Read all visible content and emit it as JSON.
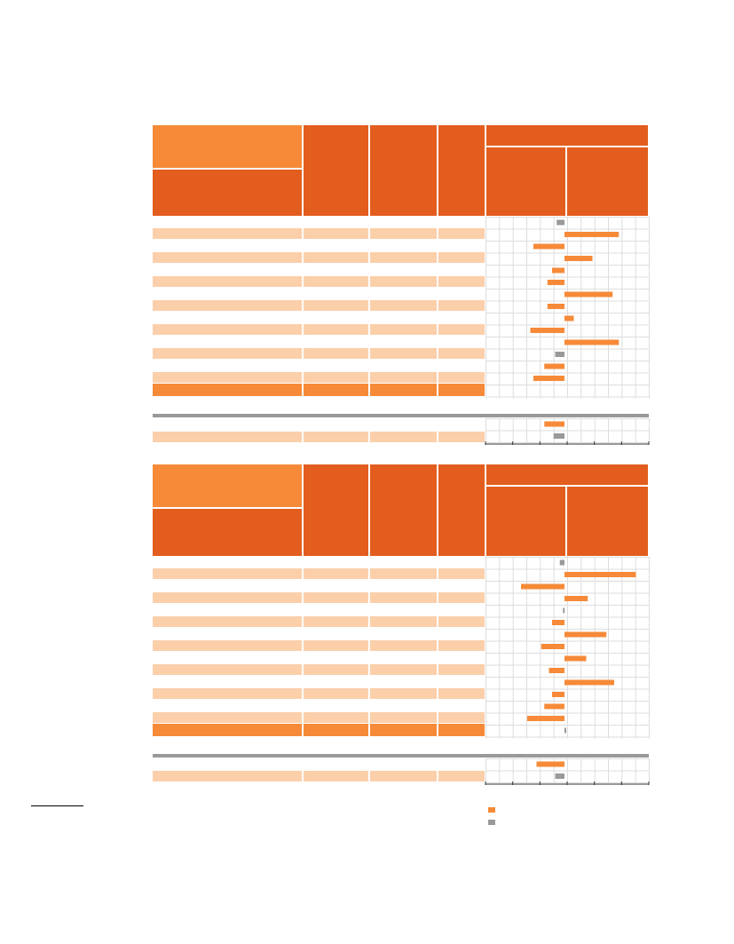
{
  "colors": {
    "header_dark": "#e35d1e",
    "header_light": "#f68a38",
    "band": "#fbcfaa",
    "bar_orange": "#f68a38",
    "bar_gray": "#999999",
    "grid": "#dddddd",
    "separator": "#999999"
  },
  "chart_data": [
    {
      "type": "bar",
      "orientation": "horizontal",
      "grid": true,
      "zero_line": "center",
      "series": [
        {
          "values": [
            -0.5,
            3.5,
            -2.0,
            1.8,
            -0.8,
            -1.1,
            3.1,
            -1.1,
            0.6,
            -2.2,
            3.5,
            -0.6,
            -1.3,
            -2.0,
            0.0
          ],
          "colors": [
            "gray",
            "orange",
            "orange",
            "orange",
            "orange",
            "orange",
            "orange",
            "orange",
            "orange",
            "orange",
            "orange",
            "gray",
            "orange",
            "orange",
            "none"
          ]
        },
        {
          "values": [
            -1.3,
            -0.7
          ],
          "colors": [
            "orange",
            "gray"
          ]
        }
      ]
    },
    {
      "type": "bar",
      "orientation": "horizontal",
      "grid": true,
      "zero_line": "center",
      "series": [
        {
          "values": [
            -0.3,
            4.6,
            -2.8,
            1.5,
            -0.1,
            -0.8,
            2.7,
            -1.5,
            1.4,
            -1.0,
            3.2,
            -0.8,
            -1.3,
            -2.4,
            0.1
          ],
          "colors": [
            "gray",
            "orange",
            "orange",
            "orange",
            "gray",
            "orange",
            "orange",
            "orange",
            "orange",
            "orange",
            "orange",
            "orange",
            "orange",
            "orange",
            "gray"
          ]
        },
        {
          "values": [
            -1.8,
            -0.6
          ],
          "colors": [
            "orange",
            "gray"
          ]
        }
      ]
    }
  ],
  "legend": [
    {
      "icon": "orange-square-icon",
      "color": "#f68a38"
    },
    {
      "icon": "gray-square-icon",
      "color": "#999999"
    }
  ]
}
